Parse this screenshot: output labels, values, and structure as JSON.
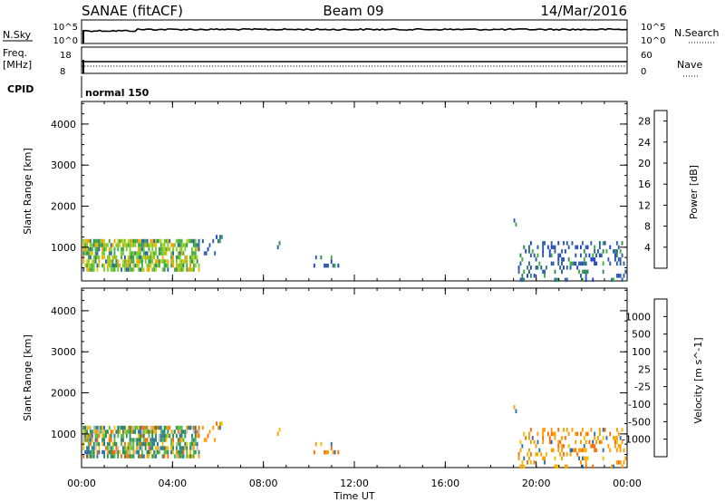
{
  "header": {
    "station": "SANAE (fitACF)",
    "beam": "Beam 09",
    "date": "14/Mar/2016"
  },
  "status_panel": {
    "nsky_label": "N.Sky",
    "nsky_ticks": [
      "10^5",
      "10^0"
    ],
    "nsearch_label": "N.Search",
    "nsearch_ticks": [
      "10^5",
      "10^0"
    ],
    "freq_label_line1": "Freq.",
    "freq_label_line2": "[MHz]",
    "freq_ticks": [
      "18",
      "8"
    ],
    "nave_label": "Nave",
    "nave_ticks": [
      "60",
      "0"
    ],
    "cpid_label": "CPID",
    "cpid_value": "normal 150"
  },
  "chart_data": [
    {
      "type": "heatmap",
      "name": "Power",
      "ylabel": "Slant Range [km]",
      "xlabel": "Time UT",
      "x_ticks": [
        "00:00",
        "04:00",
        "08:00",
        "12:00",
        "16:00",
        "20:00",
        "00:00"
      ],
      "x_tick_hours": [
        0,
        4,
        8,
        12,
        16,
        20,
        24
      ],
      "xlim_hours": [
        0,
        24
      ],
      "y_ticks": [
        1000,
        2000,
        3000,
        4000
      ],
      "ylim_km": [
        180,
        4550
      ],
      "colorbar": {
        "label": "Power [dB]",
        "ticks": [
          "28",
          "24",
          "20",
          "16",
          "12",
          "8",
          "4"
        ],
        "range": [
          0,
          30
        ],
        "colors": [
          "#0000ff",
          "#2040d0",
          "#2e5fa0",
          "#2e8b57",
          "#3fae3f",
          "#7acc2a",
          "#c8d21e",
          "#f0b400",
          "#ff9a00",
          "#ff6a00",
          "#ff3000",
          "#e00000"
        ]
      },
      "echo_regions": [
        {
          "t": [
            0.05,
            5.2
          ],
          "r": [
            480,
            1200
          ],
          "level": 0.5
        },
        {
          "t": [
            5.3,
            6.2
          ],
          "r": [
            900,
            1300
          ],
          "level": 0.3
        },
        {
          "t": [
            8.6,
            8.8
          ],
          "r": [
            950,
            1150
          ],
          "level": 0.3
        },
        {
          "t": [
            10.2,
            11.4
          ],
          "r": [
            550,
            800
          ],
          "level": 0.3
        },
        {
          "t": [
            19.0,
            19.2
          ],
          "r": [
            1550,
            1700
          ],
          "level": 0.3
        },
        {
          "t": [
            19.2,
            23.9
          ],
          "r": [
            220,
            1150
          ],
          "level": 0.3
        }
      ]
    },
    {
      "type": "heatmap",
      "name": "Velocity",
      "ylabel": "Slant Range [km]",
      "xlabel": "Time UT",
      "x_ticks": [
        "00:00",
        "04:00",
        "08:00",
        "12:00",
        "16:00",
        "20:00",
        "00:00"
      ],
      "x_tick_hours": [
        0,
        4,
        8,
        12,
        16,
        20,
        24
      ],
      "xlim_hours": [
        0,
        24
      ],
      "y_ticks": [
        1000,
        2000,
        3000,
        4000
      ],
      "ylim_km": [
        180,
        4550
      ],
      "colorbar": {
        "label": "Velocity [m s^-1]",
        "ticks": [
          "1000",
          "500",
          "100",
          "25",
          "-25",
          "-100",
          "-500",
          "-1000"
        ],
        "colors": [
          "#1040c0",
          "#2c6fb0",
          "#2e8b57",
          "#4fc040",
          "#bdbdbd",
          "#f0c000",
          "#ff9c00",
          "#ff6a00",
          "#ff2a00"
        ]
      },
      "echo_regions": [
        {
          "t": [
            0.05,
            5.2
          ],
          "r": [
            480,
            1200
          ],
          "level": 0.5
        },
        {
          "t": [
            5.3,
            6.2
          ],
          "r": [
            900,
            1300
          ],
          "level": 0.3
        },
        {
          "t": [
            8.6,
            8.8
          ],
          "r": [
            950,
            1150
          ],
          "level": 0.3
        },
        {
          "t": [
            10.2,
            11.4
          ],
          "r": [
            550,
            800
          ],
          "level": 0.3
        },
        {
          "t": [
            19.0,
            19.2
          ],
          "r": [
            1550,
            1700
          ],
          "level": 0.3
        },
        {
          "t": [
            19.2,
            23.9
          ],
          "r": [
            220,
            1150
          ],
          "level": 0.3
        }
      ]
    }
  ]
}
